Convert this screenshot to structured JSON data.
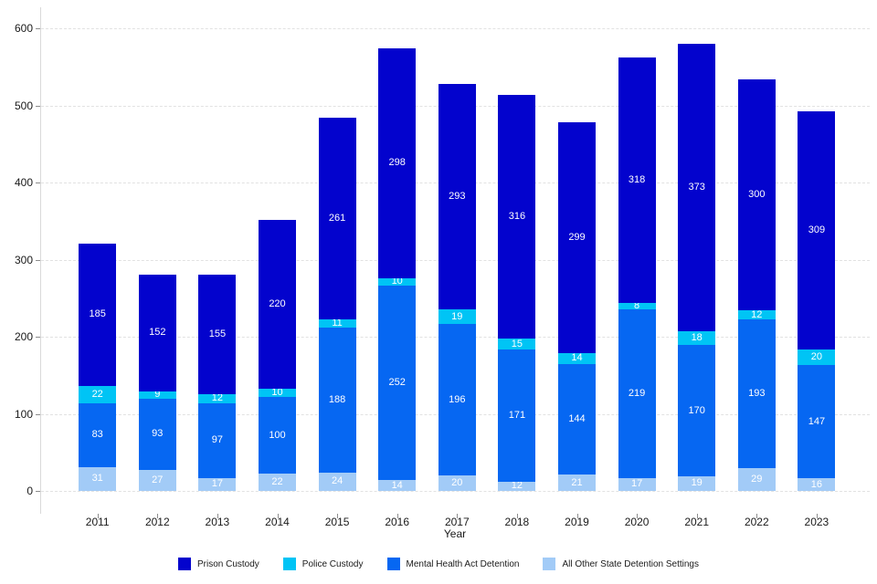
{
  "chart_data": {
    "type": "bar",
    "stacked": true,
    "title": "",
    "xlabel": "Year",
    "ylabel": "",
    "categories": [
      "2011",
      "2012",
      "2013",
      "2014",
      "2015",
      "2016",
      "2017",
      "2018",
      "2019",
      "2020",
      "2021",
      "2022",
      "2023"
    ],
    "series": [
      {
        "name": "All Other State Detention Settings",
        "color": "#a2cbf7",
        "stack_order": "bottom",
        "values": [
          31,
          27,
          17,
          22,
          24,
          14,
          20,
          12,
          21,
          17,
          19,
          29,
          16
        ]
      },
      {
        "name": "Mental Health Act Detention",
        "color": "#0667f2",
        "stack_order": "second",
        "values": [
          83,
          93,
          97,
          100,
          188,
          252,
          196,
          171,
          144,
          219,
          170,
          193,
          147
        ]
      },
      {
        "name": "Police Custody",
        "color": "#00c4f5",
        "stack_order": "third",
        "values": [
          22,
          9,
          12,
          10,
          11,
          10,
          19,
          15,
          14,
          8,
          18,
          12,
          20
        ]
      },
      {
        "name": "Prison Custody",
        "color": "#0303cd",
        "stack_order": "top",
        "values": [
          185,
          152,
          155,
          220,
          261,
          298,
          293,
          316,
          299,
          318,
          373,
          300,
          309
        ]
      }
    ],
    "totals": [
      321,
      281,
      281,
      352,
      484,
      574,
      528,
      514,
      478,
      562,
      580,
      534,
      492
    ],
    "legend": [
      {
        "label": "Prison Custody",
        "color": "#0303cd"
      },
      {
        "label": "Police Custody",
        "color": "#00c4f5"
      },
      {
        "label": "Mental Health Act Detention",
        "color": "#0667f2"
      },
      {
        "label": "All Other State Detention Settings",
        "color": "#a2cbf7"
      }
    ],
    "legend_position": "bottom",
    "yticks": [
      0,
      100,
      200,
      300,
      400,
      500,
      600
    ],
    "ylim": [
      0,
      600
    ],
    "grid": "horizontal-dashed",
    "value_label_color": "#ffffff"
  }
}
